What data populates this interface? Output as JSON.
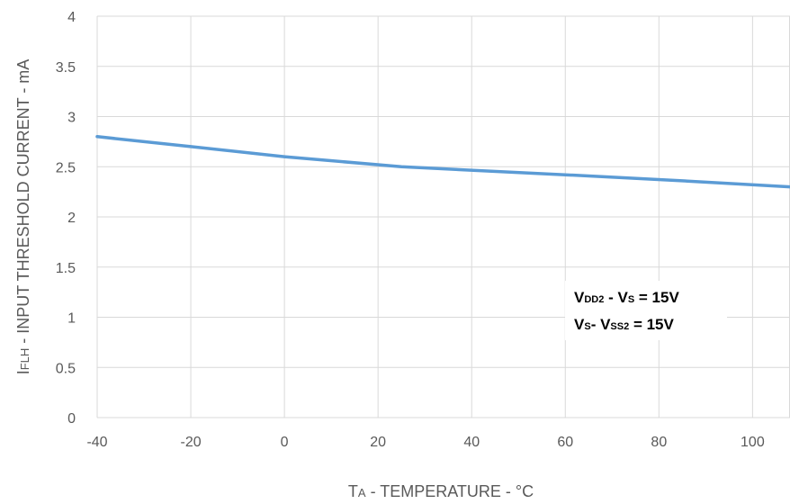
{
  "chart_data": {
    "type": "line",
    "title": "",
    "xlabel": {
      "main": "T",
      "sub": "A",
      "rest": " - TEMPERATURE - °C"
    },
    "ylabel": {
      "main": "I",
      "sub": "FLH",
      "rest": " - INPUT THRESHOLD CURRENT - mA"
    },
    "xlim": [
      -40,
      108
    ],
    "ylim": [
      0,
      4
    ],
    "x_ticks": [
      "-40",
      "-20",
      "0",
      "20",
      "40",
      "60",
      "80",
      "100"
    ],
    "y_ticks": [
      "0",
      "0.5",
      "1",
      "1.5",
      "2",
      "2.5",
      "3",
      "3.5",
      "4"
    ],
    "grid": true,
    "series": [
      {
        "color": "#5B9BD5",
        "x": [
          -40,
          -20,
          0,
          25,
          60,
          85,
          108
        ],
        "y": [
          2.8,
          2.7,
          2.6,
          2.5,
          2.42,
          2.36,
          2.3
        ]
      }
    ],
    "annotation": {
      "line1": {
        "a": "V",
        "a_sub": "DD2",
        "b": " - V",
        "b_sub": "S",
        "c": " = 15V"
      },
      "line2": {
        "a": "V",
        "a_sub": "S",
        "b": "- V",
        "b_sub": "SS2",
        "c": " = 15V"
      }
    }
  }
}
